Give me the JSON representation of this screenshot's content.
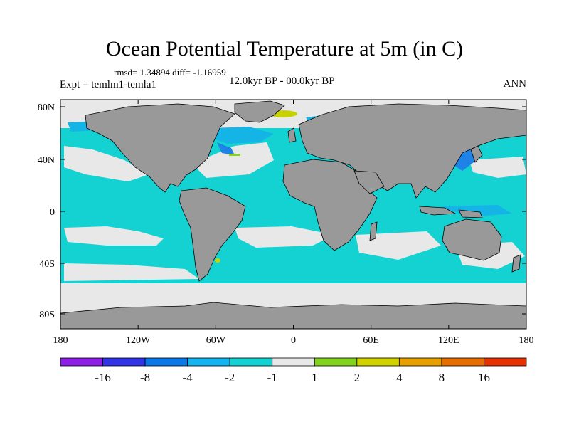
{
  "title": "Ocean Potential Temperature at 5m (in C)",
  "stats": "rmsd= 1.34894 diff= -1.16959",
  "experiment": "Expt = temlm1-temla1",
  "period": "12.0kyr BP - 00.0kyr BP",
  "season": "ANN",
  "axes": {
    "lat_ticks": [
      "80N",
      "40N",
      "0",
      "40S",
      "80S"
    ],
    "lon_ticks": [
      "180",
      "120W",
      "60W",
      "0",
      "60E",
      "120E",
      "180"
    ]
  },
  "colors": {
    "land": "#999999",
    "ice": "#e8e8e8",
    "ocean_main": "#14d2d2",
    "ocean_mid": "#14b4e6",
    "ocean_deep": "#1e82e6",
    "warm_small": "#c8d200"
  },
  "colorbar": {
    "bins": [
      "#8c1ee6",
      "#3232e6",
      "#0a78e6",
      "#14b4f0",
      "#14d2d2",
      "#e8e8e8",
      "#82d21e",
      "#d2d200",
      "#e6a000",
      "#e66e00",
      "#e63200"
    ],
    "labels": [
      "-16",
      "-8",
      "-4",
      "-2",
      "-1",
      "1",
      "2",
      "4",
      "8",
      "16"
    ]
  }
}
